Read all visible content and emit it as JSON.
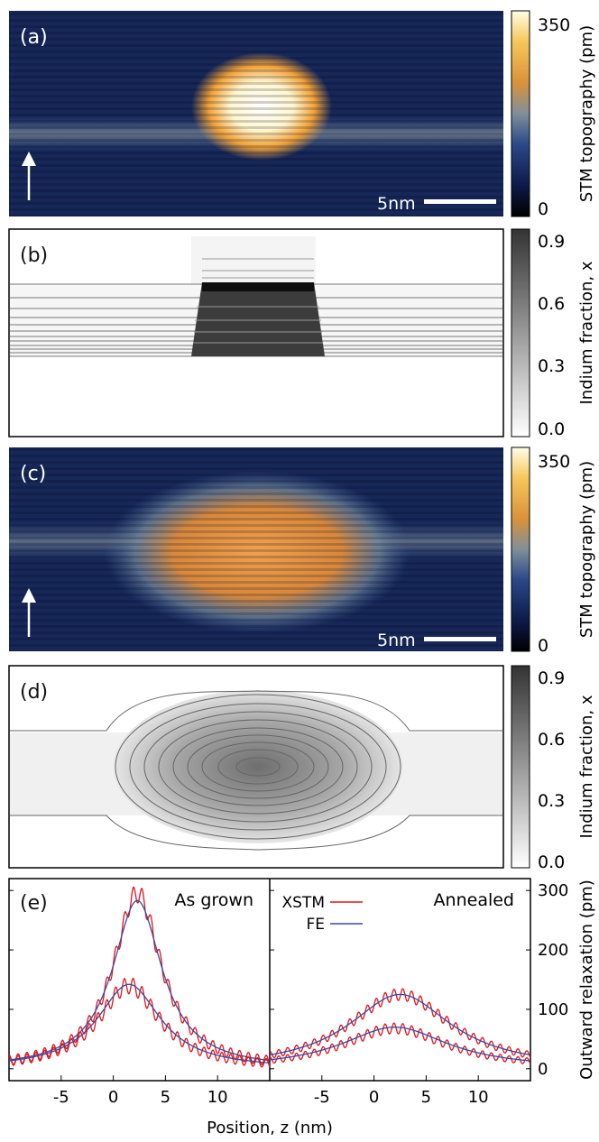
{
  "panels": {
    "a": {
      "label": "(a)",
      "scale_bar": "5nm"
    },
    "b": {
      "label": "(b)"
    },
    "c": {
      "label": "(c)",
      "scale_bar": "5nm"
    },
    "d": {
      "label": "(d)"
    },
    "e": {
      "label": "(e)"
    }
  },
  "colorbars": {
    "stm": {
      "title": "STM topography (pm)",
      "ticks": [
        "350",
        "0"
      ]
    },
    "indium": {
      "title": "Indium fraction, x",
      "ticks": [
        "0.9",
        "0.6",
        "0.3",
        "0.0"
      ]
    }
  },
  "colors": {
    "xstm": "#e0141b",
    "fe": "#3a4a9e",
    "stm_low": "#0d1a3a",
    "stm_high": "#fffbe0"
  },
  "chart_data": {
    "type": "line",
    "left_title": "As grown",
    "right_title": "Annealed",
    "xlabel": "Position, z (nm)",
    "ylabel": "Outward relaxation (pm)",
    "xlim": [
      -10,
      15
    ],
    "ylim": [
      -20,
      320
    ],
    "x_ticks": [
      "-5",
      "0",
      "5",
      "10"
    ],
    "y_ticks": [
      "300",
      "200",
      "100",
      "0"
    ],
    "legend": [
      "XSTM",
      "FE"
    ],
    "series": [
      {
        "name": "XSTM",
        "panel": "as_grown",
        "center": 2.3,
        "peak": 295,
        "width": 2.8,
        "ripple": 16
      },
      {
        "name": "FE",
        "panel": "as_grown",
        "center": 2.3,
        "peak": 283,
        "width": 2.9,
        "ripple": 0
      },
      {
        "name": "XSTM",
        "panel": "as_grown",
        "center": 1.5,
        "peak": 140,
        "width": 3.6,
        "ripple": 14
      },
      {
        "name": "FE",
        "panel": "as_grown",
        "center": 1.5,
        "peak": 142,
        "width": 3.7,
        "ripple": 0
      },
      {
        "name": "XSTM",
        "panel": "annealed",
        "center": 2.5,
        "peak": 125,
        "width": 6.0,
        "ripple": 10
      },
      {
        "name": "FE",
        "panel": "annealed",
        "center": 2.5,
        "peak": 125,
        "width": 6.0,
        "ripple": 0
      },
      {
        "name": "XSTM",
        "panel": "annealed",
        "center": 2.0,
        "peak": 68,
        "width": 6.2,
        "ripple": 9
      },
      {
        "name": "FE",
        "panel": "annealed",
        "center": 2.0,
        "peak": 70,
        "width": 6.3,
        "ripple": 0
      }
    ]
  }
}
